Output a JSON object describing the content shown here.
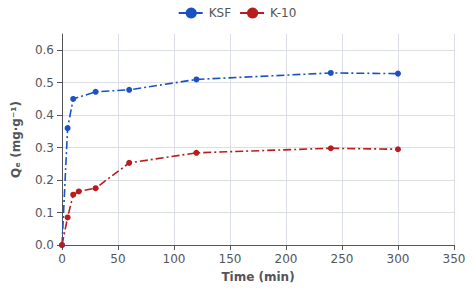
{
  "chart_data": {
    "type": "line",
    "xlabel": "Time (min)",
    "ylabel": "Qₑ (mg·g⁻¹)",
    "series": [
      {
        "name": "KSF",
        "color": "#1a52c4",
        "marker": "circle",
        "line_style": "dashdot",
        "x": [
          0,
          5,
          10,
          30,
          60,
          120,
          240,
          300
        ],
        "values": [
          0.0,
          0.36,
          0.45,
          0.472,
          0.478,
          0.51,
          0.53,
          0.528
        ]
      },
      {
        "name": "K-10",
        "color": "#b81c1c",
        "marker": "circle",
        "line_style": "dashdot",
        "x": [
          0,
          5,
          10,
          15,
          30,
          60,
          120,
          240,
          300
        ],
        "values": [
          0.0,
          0.085,
          0.155,
          0.165,
          0.175,
          0.253,
          0.284,
          0.298,
          0.295
        ]
      }
    ],
    "xlim": [
      0,
      350
    ],
    "ylim": [
      0,
      0.65
    ],
    "xticks": [
      0,
      50,
      100,
      150,
      200,
      250,
      300,
      350
    ],
    "yticks": [
      {
        "value": 0.0,
        "label": "0.0"
      },
      0.1,
      0.2,
      0.3,
      0.4,
      0.5,
      0.6
    ],
    "grid": true,
    "legend": "top"
  }
}
